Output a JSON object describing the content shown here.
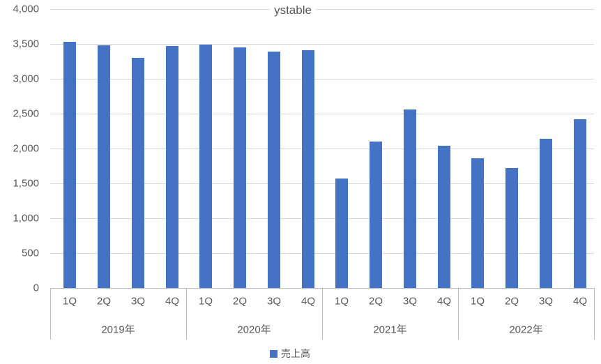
{
  "chart_data": {
    "type": "bar",
    "title": "ystable",
    "series": [
      {
        "name": "売上高",
        "values": [
          3530,
          3480,
          3300,
          3470,
          3490,
          3450,
          3390,
          3410,
          1570,
          2100,
          2560,
          2040,
          1860,
          1720,
          2140,
          2420
        ]
      }
    ],
    "quarter_labels": [
      "1Q",
      "2Q",
      "3Q",
      "4Q"
    ],
    "group_labels": [
      "2019年",
      "2020年",
      "2021年",
      "2022年"
    ],
    "categories": [
      "1Q",
      "2Q",
      "3Q",
      "4Q",
      "1Q",
      "2Q",
      "3Q",
      "4Q",
      "1Q",
      "2Q",
      "3Q",
      "4Q",
      "1Q",
      "2Q",
      "3Q",
      "4Q"
    ],
    "xlabel": "",
    "ylabel": "",
    "ylim": [
      0,
      4000
    ],
    "ytick_step": 500,
    "ytick_labels": [
      "0",
      "500",
      "1,000",
      "1,500",
      "2,000",
      "2,500",
      "3,000",
      "3,500",
      "4,000"
    ],
    "grid": true,
    "legend_position": "bottom",
    "legend": [
      "売上高"
    ]
  },
  "colors": {
    "bar": "#4472C4",
    "gridline": "#D9D9D9",
    "axis_line": "#BFBFBF",
    "text": "#595959",
    "background": "#FFFFFF"
  }
}
